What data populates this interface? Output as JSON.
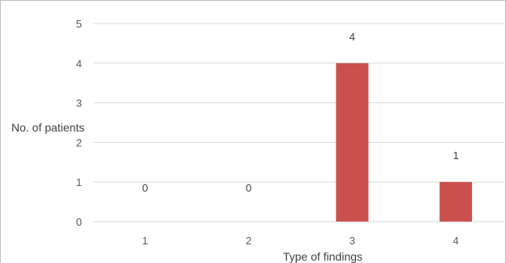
{
  "chart_data": {
    "type": "bar",
    "categories": [
      "1",
      "2",
      "3",
      "4"
    ],
    "values": [
      0,
      0,
      4,
      1
    ],
    "xlabel": "Type of findings",
    "ylabel": "No. of patients",
    "ylim": [
      0,
      5
    ],
    "yticks": [
      "0",
      "1",
      "2",
      "3",
      "4",
      "5"
    ],
    "data_labels": [
      "0",
      "0",
      "4",
      "1"
    ],
    "grid": true,
    "bar_color": "#c9504c"
  }
}
